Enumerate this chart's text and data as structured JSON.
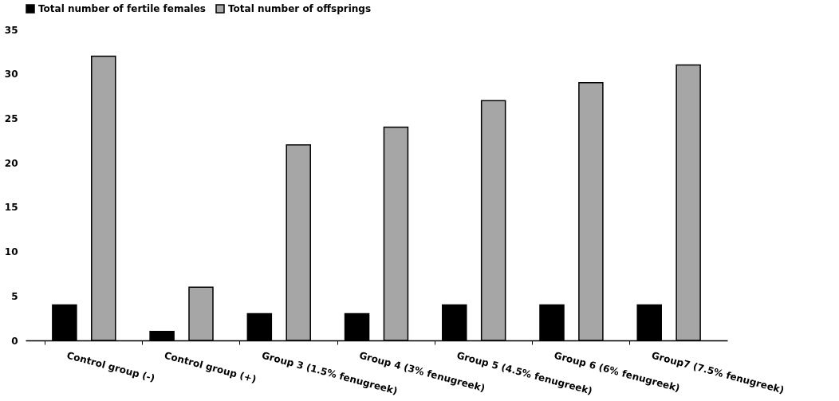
{
  "chart_data": {
    "type": "bar",
    "categories": [
      "Control group (-)",
      "Control group (+)",
      "Group 3 (1.5% fenugreek)",
      "Group 4 (3% fenugreek)",
      "Group 5 (4.5% fenugreek)",
      "Group 6 (6% fenugreek)",
      "Group7 (7.5% fenugreek)"
    ],
    "series": [
      {
        "name": "Total number of fertile females",
        "color": "#000000",
        "values": [
          4,
          1,
          3,
          3,
          4,
          4,
          4
        ]
      },
      {
        "name": "Total number of offsprings",
        "color": "#a6a6a6",
        "values": [
          32,
          6,
          22,
          24,
          27,
          29,
          31
        ]
      }
    ],
    "ylim": [
      0,
      35
    ],
    "yticks": [
      0,
      5,
      10,
      15,
      20,
      25,
      30,
      35
    ],
    "grid": false,
    "legend": "top"
  }
}
